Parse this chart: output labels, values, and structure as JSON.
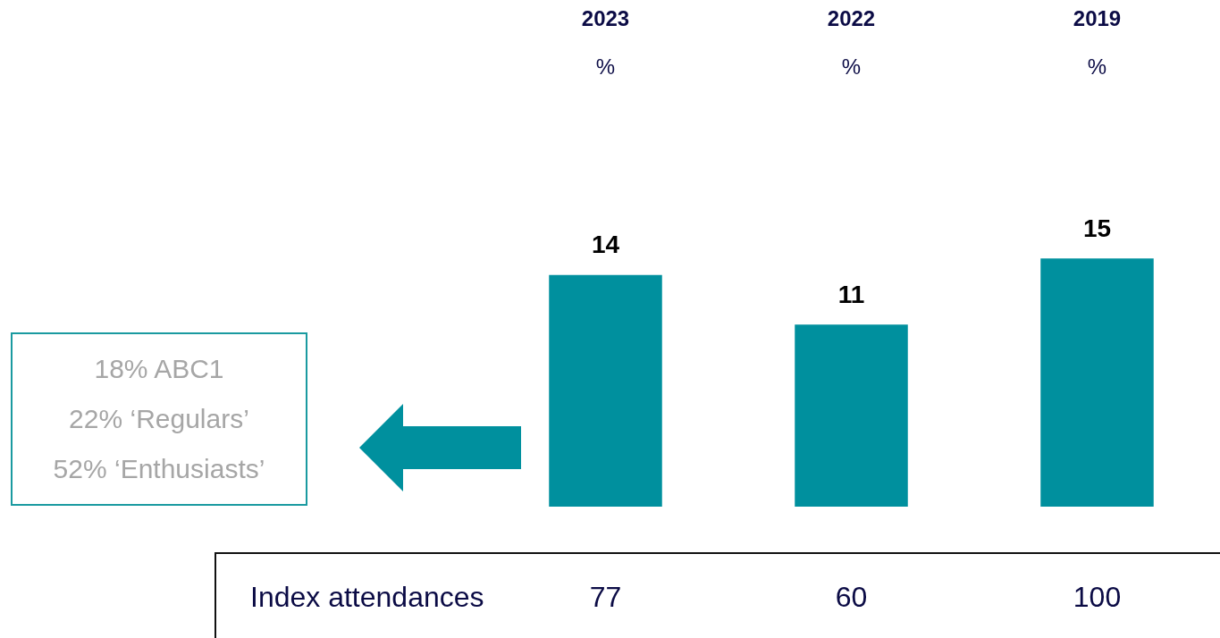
{
  "chart_data": {
    "type": "bar",
    "categories": [
      "2023",
      "2022",
      "2019"
    ],
    "values": [
      14,
      11,
      15
    ],
    "color": "#00909e",
    "data_labels": true,
    "ylabel": "%",
    "grid": false,
    "legend": false,
    "annotations": [
      "18% ABC1",
      "22% ‘Regulars’",
      "52% ‘Enthusiasts’",
      "Index attendances",
      "77",
      "60",
      "100"
    ]
  }
}
